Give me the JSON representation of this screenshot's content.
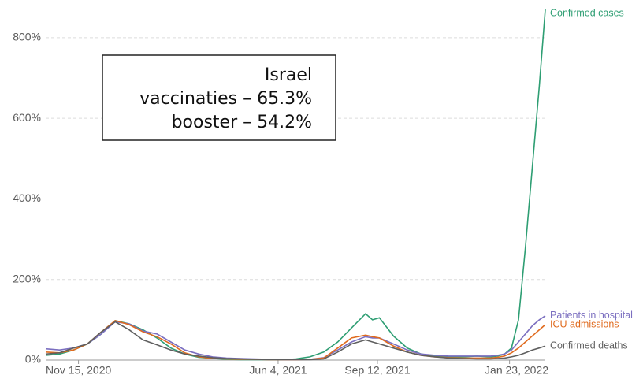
{
  "chart_data": {
    "type": "line",
    "x": [
      "2020-10-13",
      "2020-10-27",
      "2020-11-10",
      "2020-11-24",
      "2020-12-08",
      "2020-12-22",
      "2021-01-05",
      "2021-01-19",
      "2021-02-02",
      "2021-02-16",
      "2021-03-02",
      "2021-03-16",
      "2021-03-30",
      "2021-04-13",
      "2021-04-27",
      "2021-05-11",
      "2021-05-25",
      "2021-06-08",
      "2021-06-22",
      "2021-07-06",
      "2021-07-20",
      "2021-08-03",
      "2021-08-17",
      "2021-08-31",
      "2021-09-07",
      "2021-09-14",
      "2021-09-28",
      "2021-10-12",
      "2021-10-26",
      "2021-11-09",
      "2021-11-23",
      "2021-12-07",
      "2021-12-21",
      "2022-01-04",
      "2022-01-11",
      "2022-01-18",
      "2022-01-25",
      "2022-02-01",
      "2022-02-08",
      "2022-02-15",
      "2022-02-22",
      "2022-02-28"
    ],
    "series": [
      {
        "name": "Confirmed cases",
        "color": "#2e9e73",
        "values": [
          12,
          15,
          25,
          40,
          65,
          98,
          90,
          75,
          55,
          30,
          15,
          7,
          4,
          2,
          1,
          1,
          1,
          1,
          3,
          8,
          20,
          45,
          80,
          115,
          100,
          105,
          60,
          30,
          15,
          10,
          8,
          8,
          10,
          8,
          10,
          15,
          30,
          100,
          280,
          480,
          680,
          870
        ]
      },
      {
        "name": "Patients in hospital",
        "color": "#7b6fc0",
        "values": [
          28,
          25,
          30,
          40,
          65,
          95,
          90,
          72,
          65,
          45,
          25,
          15,
          8,
          5,
          4,
          3,
          2,
          1,
          1,
          2,
          6,
          25,
          45,
          58,
          55,
          55,
          40,
          25,
          15,
          12,
          10,
          10,
          10,
          10,
          12,
          15,
          25,
          45,
          65,
          85,
          100,
          110
        ]
      },
      {
        "name": "ICU admissions",
        "color": "#e06b1f",
        "values": [
          20,
          18,
          25,
          40,
          70,
          98,
          88,
          70,
          58,
          40,
          18,
          8,
          4,
          3,
          2,
          2,
          1,
          1,
          1,
          2,
          5,
          30,
          55,
          62,
          58,
          55,
          35,
          20,
          12,
          8,
          6,
          5,
          5,
          5,
          7,
          10,
          18,
          30,
          45,
          60,
          75,
          88
        ]
      },
      {
        "name": "Confirmed deaths",
        "color": "#5f5f5f",
        "values": [
          15,
          18,
          30,
          40,
          70,
          95,
          75,
          50,
          38,
          25,
          15,
          10,
          6,
          4,
          3,
          2,
          1,
          1,
          1,
          1,
          3,
          20,
          40,
          50,
          45,
          40,
          30,
          20,
          12,
          8,
          5,
          4,
          3,
          3,
          4,
          5,
          8,
          12,
          18,
          25,
          30,
          35
        ]
      }
    ],
    "xlim": [
      "2020-10-13",
      "2022-02-28"
    ],
    "xticks": [
      {
        "value": "2020-11-15",
        "label": "Nov 15, 2020"
      },
      {
        "value": "2021-06-04",
        "label": "Jun 4, 2021"
      },
      {
        "value": "2021-09-12",
        "label": "Sep 12, 2021"
      },
      {
        "value": "2022-01-23",
        "label": "Jan 23, 2022"
      }
    ],
    "ylim": [
      0,
      880
    ],
    "yticks": [
      {
        "value": 0,
        "label": "0%"
      },
      {
        "value": 200,
        "label": "200%"
      },
      {
        "value": 400,
        "label": "400%"
      },
      {
        "value": 600,
        "label": "600%"
      },
      {
        "value": 800,
        "label": "800%"
      }
    ],
    "grid": true,
    "annotation": [
      "Israel",
      "vaccinaties – 65.3%",
      "booster – 54.2%"
    ]
  }
}
